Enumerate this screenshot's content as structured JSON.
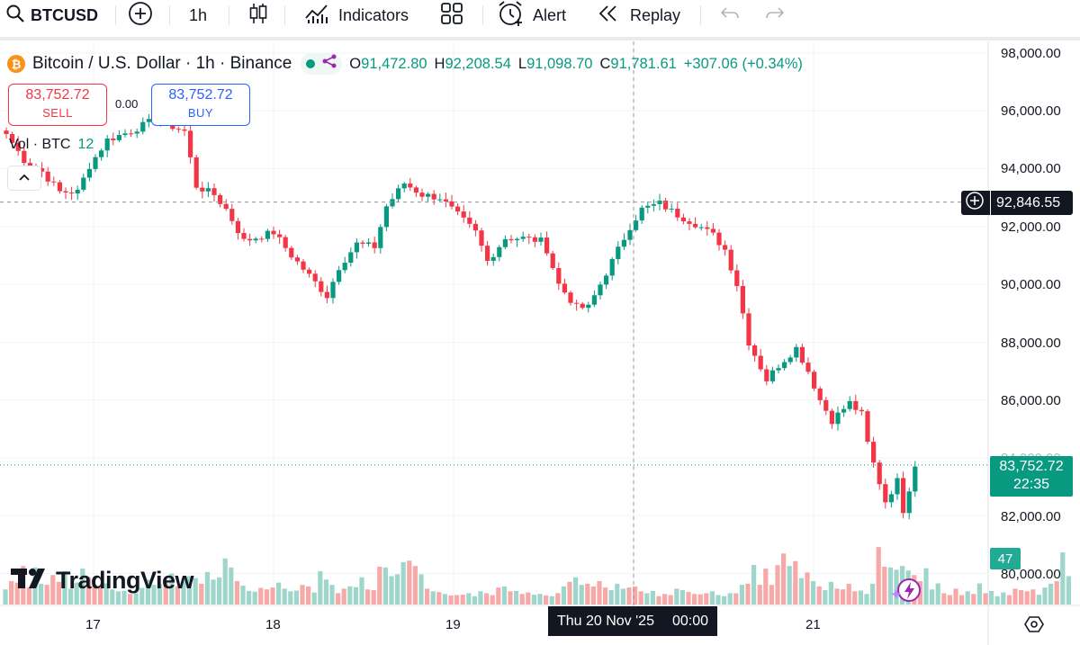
{
  "toolbar": {
    "symbol": "BTCUSD",
    "interval": "1h",
    "indicators_label": "Indicators",
    "alert_label": "Alert",
    "replay_label": "Replay"
  },
  "legend": {
    "title": "Bitcoin / U.S. Dollar · 1h · Binance",
    "open_key": "O",
    "open": "91,472.80",
    "high_key": "H",
    "high": "92,208.54",
    "low_key": "L",
    "low": "91,098.70",
    "close_key": "C",
    "close": "91,781.61",
    "change": "+307.06 (+0.34%)"
  },
  "trade": {
    "sell_price": "83,752.72",
    "sell_label": "SELL",
    "buy_price": "83,752.72",
    "buy_label": "BUY",
    "spread": "0.00"
  },
  "volume": {
    "label": "Vol · BTC",
    "value": "12",
    "scale_value": "47"
  },
  "price_axis": {
    "ticks": [
      "98,000.00",
      "96,000.00",
      "94,000.00",
      "92,000.00",
      "90,000.00",
      "88,000.00",
      "86,000.00",
      "84,000.00",
      "82,000.00",
      "80,000.00"
    ],
    "crosshair_price": "92,846.55",
    "last_price": "83,752.72",
    "countdown": "22:35"
  },
  "time_axis": {
    "ticks": [
      "17",
      "18",
      "19",
      "21"
    ],
    "crosshair_date": "Thu 20 Nov '25",
    "crosshair_time": "00:00"
  },
  "branding": {
    "logo_text": "TradingView"
  },
  "colors": {
    "up": "#089981",
    "down": "#f23645",
    "vol_up": "#9fd6cc",
    "vol_down": "#f7a9a7",
    "accent": "#2962ff"
  },
  "chart_data": {
    "type": "candlestick",
    "ylim": [
      79400,
      98400
    ],
    "y_ticks": [
      98000,
      96000,
      94000,
      92000,
      90000,
      88000,
      86000,
      84000,
      82000,
      80000
    ],
    "last_price": 83752.72,
    "crosshair_price": 92846.55,
    "anchors": [
      [
        0,
        95200
      ],
      [
        3,
        94300
      ],
      [
        6,
        93900
      ],
      [
        9,
        93200
      ],
      [
        12,
        93200
      ],
      [
        14,
        94100
      ],
      [
        17,
        95000
      ],
      [
        21,
        95300
      ],
      [
        25,
        95700
      ],
      [
        30,
        95300
      ],
      [
        32,
        93400
      ],
      [
        35,
        93100
      ],
      [
        37,
        92600
      ],
      [
        40,
        91500
      ],
      [
        45,
        91800
      ],
      [
        48,
        91000
      ],
      [
        51,
        90300
      ],
      [
        54,
        89600
      ],
      [
        56,
        90600
      ],
      [
        59,
        91400
      ],
      [
        62,
        91300
      ],
      [
        64,
        92700
      ],
      [
        67,
        93500
      ],
      [
        70,
        93100
      ],
      [
        73,
        93000
      ],
      [
        76,
        92400
      ],
      [
        79,
        91800
      ],
      [
        81,
        90800
      ],
      [
        84,
        91600
      ],
      [
        87,
        91600
      ],
      [
        90,
        91500
      ],
      [
        91,
        91200
      ],
      [
        93,
        90000
      ],
      [
        96,
        89200
      ],
      [
        98,
        89200
      ],
      [
        100,
        90000
      ],
      [
        103,
        91200
      ],
      [
        105,
        92000
      ],
      [
        107,
        92600
      ],
      [
        110,
        92800
      ],
      [
        113,
        92400
      ],
      [
        116,
        92100
      ],
      [
        119,
        91700
      ],
      [
        121,
        91200
      ],
      [
        123,
        90000
      ],
      [
        125,
        88000
      ],
      [
        128,
        86700
      ],
      [
        130,
        87200
      ],
      [
        133,
        87800
      ],
      [
        135,
        87000
      ],
      [
        137,
        86000
      ],
      [
        139,
        85300
      ],
      [
        142,
        85900
      ],
      [
        144,
        85500
      ],
      [
        145,
        84500
      ],
      [
        146,
        83800
      ],
      [
        148,
        82500
      ],
      [
        150,
        83200
      ],
      [
        151,
        82200
      ],
      [
        153,
        83700
      ]
    ],
    "volumes": [
      0.4,
      0.62,
      0.58,
      1.02,
      0.45,
      0.98,
      0.55,
      0.52,
      0.78,
      0.6,
      0.88,
      0.42,
      0.58,
      0.95,
      0.72,
      0.52,
      0.48,
      0.56,
      0.4,
      0.35,
      0.36,
      0.28,
      0.3,
      0.44,
      0.66,
      0.52,
      0.54,
      0.62,
      0.82,
      0.48,
      0.68,
      0.75,
      0.7,
      0.55,
      0.86,
      0.66,
      0.72,
      1.22,
      0.98,
      0.62,
      0.5,
      0.36,
      0.34,
      0.44,
      0.4,
      0.45,
      0.58,
      0.42,
      0.35,
      0.37,
      0.52,
      0.48,
      0.32,
      0.88,
      0.66,
      0.52,
      0.3,
      0.42,
      0.48,
      0.46,
      0.72,
      0.4,
      0.38,
      1.0,
      0.98,
      0.75,
      0.8,
      1.12,
      1.16,
      1.02,
      0.8,
      0.42,
      0.35,
      0.33,
      0.28,
      0.24,
      0.25,
      0.26,
      0.3,
      0.22,
      0.35,
      0.3,
      0.25,
      0.45,
      0.48,
      0.35,
      0.36,
      0.28,
      0.32,
      0.26,
      0.28,
      0.24,
      0.22,
      0.3,
      0.48,
      0.6,
      0.72,
      0.52,
      0.55,
      0.48,
      0.62,
      0.45,
      0.38,
      0.55,
      0.42,
      0.45,
      0.48,
      0.35,
      0.3,
      0.36,
      0.22,
      0.28,
      0.25,
      0.42,
      0.38,
      0.33,
      0.28,
      0.27,
      0.3,
      0.35,
      0.25,
      0.22,
      0.3,
      0.3,
      0.52,
      0.55,
      1.05,
      0.52,
      0.95,
      0.52,
      1.04,
      1.35,
      1.02,
      1.15,
      0.7,
      0.85,
      0.62,
      0.48,
      0.38,
      0.6,
      0.42,
      0.4,
      0.55,
      0.35,
      0.37,
      0.28,
      0.55,
      1.52,
      1.0,
      0.98,
      0.92,
      1.02,
      0.9,
      0.78,
      0.62,
      0.96,
      0.4,
      0.56,
      0.3,
      0.25,
      0.42,
      0.25,
      0.35,
      0.28,
      0.56,
      0.3,
      0.36,
      0.22,
      0.32,
      0.25,
      0.42,
      0.38,
      0.35,
      0.4,
      0.26,
      0.45,
      0.55,
      0.62,
      1.38,
      0.75
    ]
  }
}
